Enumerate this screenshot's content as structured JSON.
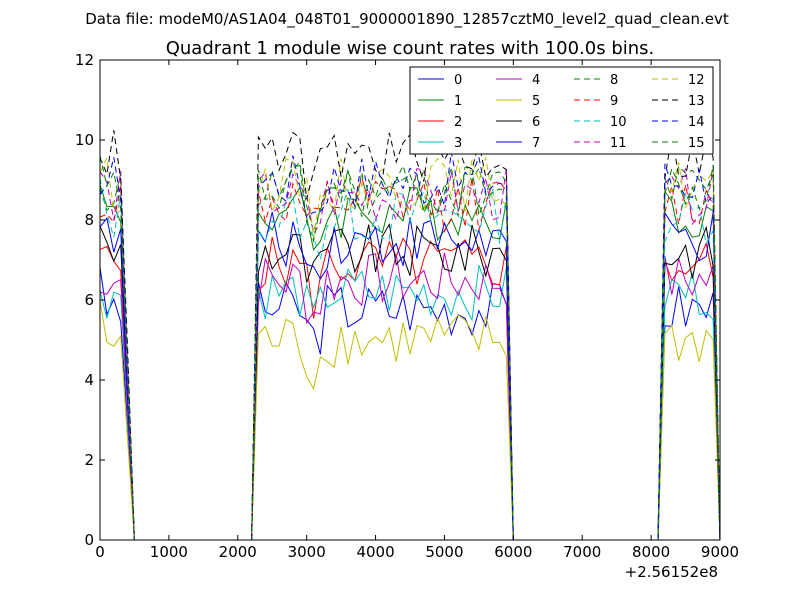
{
  "chart_data": {
    "type": "line",
    "suptitle": "Data file: modeM0/AS1A04_048T01_9000001890_12857cztM0_level2_quad_clean.evt",
    "title": "Quadrant 1 module wise count rates with 100.0s bins.",
    "xlabel": "",
    "ylabel": "",
    "xlim": [
      0,
      9000
    ],
    "ylim": [
      0,
      12
    ],
    "x_offset_label": "+2.56152e8",
    "xticks": [
      0,
      1000,
      2000,
      3000,
      4000,
      5000,
      6000,
      7000,
      8000,
      9000
    ],
    "xtick_labels": [
      "0",
      "1000",
      "2000",
      "3000",
      "4000",
      "5000",
      "6000",
      "7000",
      "8000",
      "9000"
    ],
    "yticks": [
      0,
      2,
      4,
      6,
      8,
      10,
      12
    ],
    "ytick_labels": [
      "0",
      "2",
      "4",
      "6",
      "8",
      "10",
      "12"
    ],
    "legend_position": "top-right",
    "grid": false,
    "segments": [
      {
        "start": 0,
        "end": 300,
        "ramp_before": [],
        "ramp_after": [
          0.5,
          0.0
        ]
      },
      {
        "start": 2250,
        "end": 5950,
        "ramp_before": [
          0.05,
          0.35
        ],
        "ramp_after": [
          0.2,
          0.0
        ]
      },
      {
        "start": 8150,
        "end": 8950,
        "ramp_before": [
          0.02,
          0.3,
          0.6
        ],
        "ramp_after": []
      }
    ],
    "series": [
      {
        "name": "0",
        "color": "#0000ff",
        "dash": "solid",
        "level": 5.8
      },
      {
        "name": "1",
        "color": "#008000",
        "dash": "solid",
        "level": 8.2
      },
      {
        "name": "2",
        "color": "#ff0000",
        "dash": "solid",
        "level": 6.9
      },
      {
        "name": "3",
        "color": "#00bfbf",
        "dash": "solid",
        "level": 6.2
      },
      {
        "name": "4",
        "color": "#bf00bf",
        "dash": "solid",
        "level": 6.5
      },
      {
        "name": "5",
        "color": "#bfbf00",
        "dash": "solid",
        "level": 5.0
      },
      {
        "name": "6",
        "color": "#000000",
        "dash": "solid",
        "level": 7.2
      },
      {
        "name": "7",
        "color": "#0000ff",
        "dash": "solid",
        "level": 7.5
      },
      {
        "name": "8",
        "color": "#008000",
        "dash": "dashed",
        "level": 8.8
      },
      {
        "name": "9",
        "color": "#ff0000",
        "dash": "dashed",
        "level": 8.4
      },
      {
        "name": "10",
        "color": "#00bfbf",
        "dash": "dashed",
        "level": 8.1
      },
      {
        "name": "11",
        "color": "#bf00bf",
        "dash": "dashed",
        "level": 8.6
      },
      {
        "name": "12",
        "color": "#bfbf00",
        "dash": "dashed",
        "level": 8.9
      },
      {
        "name": "13",
        "color": "#000000",
        "dash": "dashed",
        "level": 9.6
      },
      {
        "name": "14",
        "color": "#0000ff",
        "dash": "dashed",
        "level": 9.0
      },
      {
        "name": "15",
        "color": "#008000",
        "dash": "dashed",
        "level": 8.7
      }
    ]
  }
}
